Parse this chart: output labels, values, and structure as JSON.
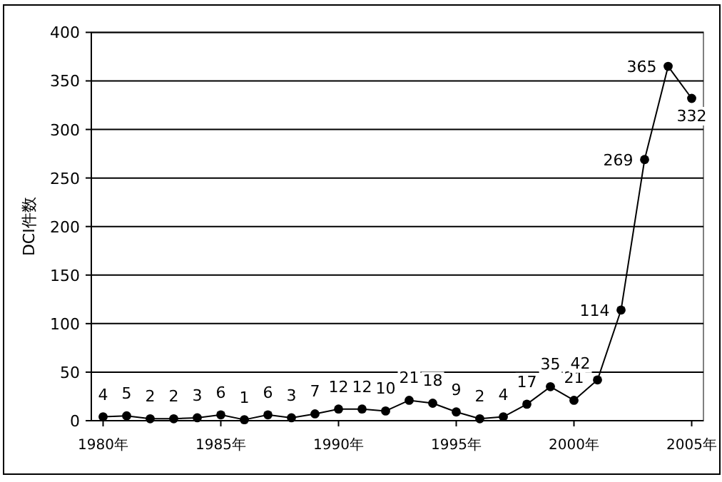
{
  "chart_data": {
    "type": "line",
    "ylabel": "DCI件数",
    "x": [
      1980,
      1981,
      1982,
      1983,
      1984,
      1985,
      1986,
      1987,
      1988,
      1989,
      1990,
      1991,
      1992,
      1993,
      1994,
      1995,
      1996,
      1997,
      1998,
      1999,
      2000,
      2001,
      2002,
      2003,
      2004,
      2005
    ],
    "series": [
      {
        "color": "#000000",
        "values": [
          4,
          5,
          2,
          2,
          3,
          6,
          1,
          6,
          3,
          7,
          12,
          12,
          10,
          21,
          18,
          9,
          2,
          4,
          17,
          35,
          21,
          42,
          114,
          269,
          365,
          332
        ]
      }
    ],
    "xlim": [
      1979.5,
      2005.5
    ],
    "xticks": [
      {
        "value": 1980,
        "label": "1980年"
      },
      {
        "value": 1985,
        "label": "1985年"
      },
      {
        "value": 1990,
        "label": "1990年"
      },
      {
        "value": 1995,
        "label": "1995年"
      },
      {
        "value": 2000,
        "label": "2000年"
      },
      {
        "value": 2005,
        "label": "2005年"
      }
    ],
    "ylim": [
      0,
      400
    ],
    "yticks": [
      0,
      50,
      100,
      150,
      200,
      250,
      300,
      350,
      400
    ],
    "grid": "y",
    "marker": "circle",
    "line_style": "solid",
    "data_labels": true
  }
}
